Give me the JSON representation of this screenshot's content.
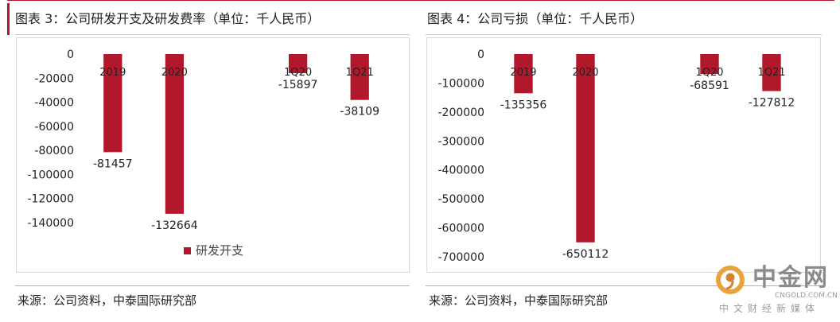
{
  "left_figure": {
    "title": "图表 3：公司研发开支及研发费率（单位：千人民币）",
    "source": "来源：公司资料，中泰国际研究部"
  },
  "right_figure": {
    "title": "图表 4：公司亏损（单位：千人民币）",
    "source": "来源：公司资料，中泰国际研究部"
  },
  "watermark": {
    "name": "中金网",
    "domain": "CNGOLD.COM.CN",
    "slogan": "中文财经新媒体"
  },
  "colors": {
    "bar": "#b2182b",
    "accent": "#b2182b"
  },
  "chart_data": [
    {
      "type": "bar",
      "title": "",
      "categories": [
        "2019",
        "2020",
        "",
        "1Q20",
        "1Q21"
      ],
      "series": [
        {
          "name": "研发开支",
          "values": [
            -81457,
            -132664,
            null,
            -15897,
            -38109
          ],
          "color": "#b2182b"
        }
      ],
      "data_labels": [
        "-81457",
        "-132664",
        "",
        "-15897",
        "-38109"
      ],
      "ylim": [
        -140000,
        0
      ],
      "yticks": [
        0,
        -20000,
        -40000,
        -60000,
        -80000,
        -100000,
        -120000,
        -140000
      ],
      "ytick_labels": [
        "0",
        "-20000",
        "-40000",
        "-60000",
        "-80000",
        "-100000",
        "-120000",
        "-140000"
      ],
      "grid": false,
      "legend": "bottom-center"
    },
    {
      "type": "bar",
      "title": "",
      "categories": [
        "2019",
        "2020",
        "",
        "1Q20",
        "1Q21"
      ],
      "series": [
        {
          "values": [
            -135356,
            -650112,
            null,
            -68591,
            -127812
          ],
          "color": "#b2182b"
        }
      ],
      "data_labels": [
        "-135356",
        "-650112",
        "",
        "-68591",
        "-127812"
      ],
      "ylim": [
        -700000,
        0
      ],
      "yticks": [
        0,
        -100000,
        -200000,
        -300000,
        -400000,
        -500000,
        -600000,
        -700000
      ],
      "ytick_labels": [
        "0",
        "-100000",
        "-200000",
        "-300000",
        "-400000",
        "-500000",
        "-600000",
        "-700000"
      ],
      "grid": false,
      "legend": "none"
    }
  ]
}
